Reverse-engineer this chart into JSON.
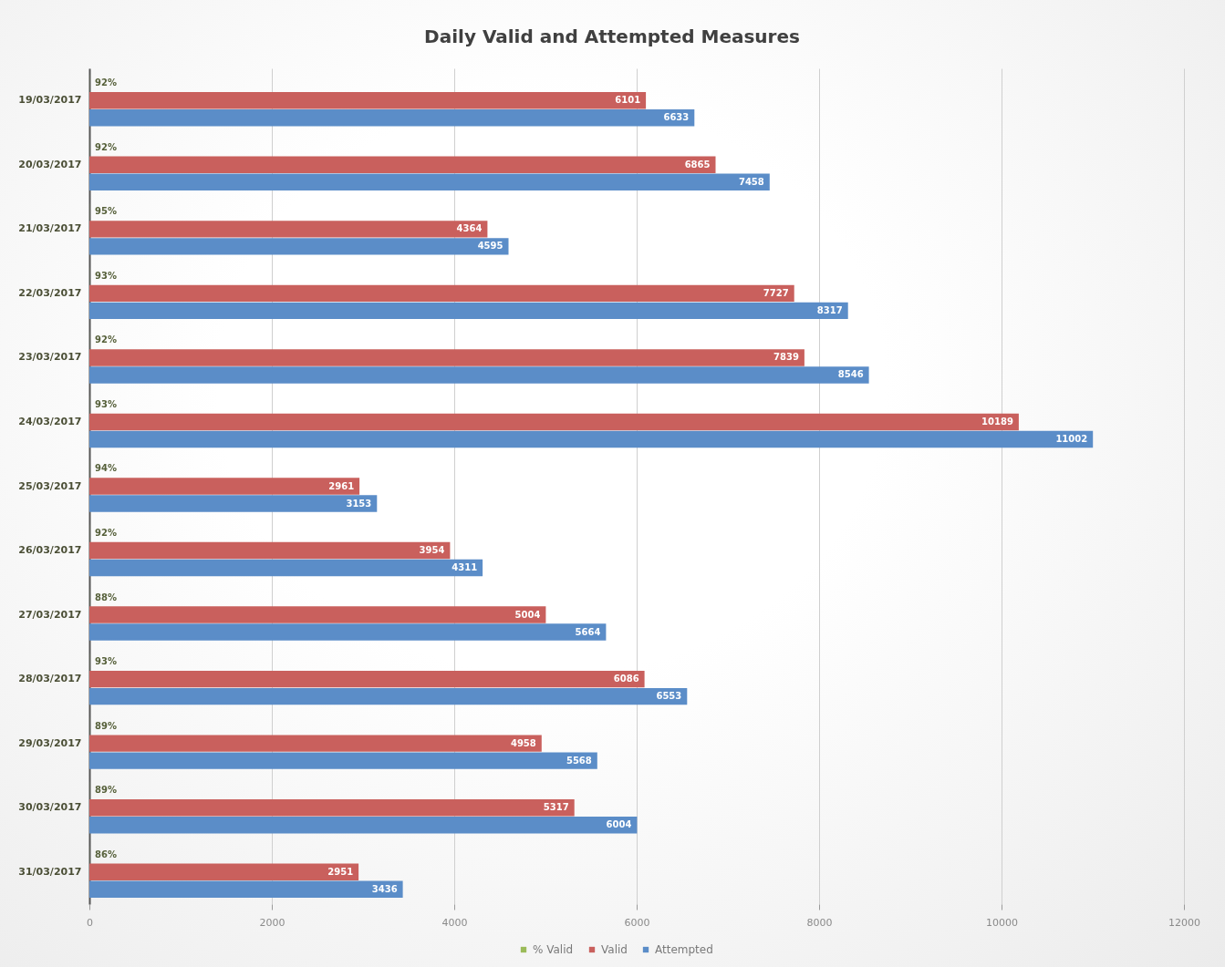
{
  "chart_data": {
    "type": "bar",
    "title": "Daily Valid and Attempted Measures",
    "orientation": "horizontal",
    "categories": [
      "19/03/2017",
      "20/03/2017",
      "21/03/2017",
      "22/03/2017",
      "23/03/2017",
      "24/03/2017",
      "25/03/2017",
      "26/03/2017",
      "27/03/2017",
      "28/03/2017",
      "29/03/2017",
      "30/03/2017",
      "31/03/2017"
    ],
    "series": [
      {
        "name": "% Valid",
        "color": "#9bbb59",
        "values": [
          0.92,
          0.92,
          0.95,
          0.93,
          0.92,
          0.93,
          0.94,
          0.92,
          0.88,
          0.93,
          0.89,
          0.89,
          0.86
        ],
        "value_labels": [
          "92%",
          "92%",
          "95%",
          "93%",
          "92%",
          "93%",
          "94%",
          "92%",
          "88%",
          "93%",
          "89%",
          "89%",
          "86%"
        ]
      },
      {
        "name": "Valid",
        "color": "#c9605d",
        "values": [
          6101,
          6865,
          4364,
          7727,
          7839,
          10189,
          2961,
          3954,
          5004,
          6086,
          4958,
          5317,
          2951
        ],
        "value_labels": [
          "6101",
          "6865",
          "4364",
          "7727",
          "7839",
          "10189",
          "2961",
          "3954",
          "5004",
          "6086",
          "4958",
          "5317",
          "2951"
        ]
      },
      {
        "name": "Attempted",
        "color": "#5b8dc8",
        "values": [
          6633,
          7458,
          4595,
          8317,
          8546,
          11002,
          3153,
          4311,
          5664,
          6553,
          5568,
          6004,
          3436
        ],
        "value_labels": [
          "6633",
          "7458",
          "4595",
          "8317",
          "8546",
          "11002",
          "3153",
          "4311",
          "5664",
          "6553",
          "5568",
          "6004",
          "3436"
        ]
      }
    ],
    "xlim": [
      0,
      12000
    ],
    "xticks": [
      0,
      2000,
      4000,
      6000,
      8000,
      10000,
      12000
    ],
    "grid": "x",
    "legend": "bottom"
  }
}
